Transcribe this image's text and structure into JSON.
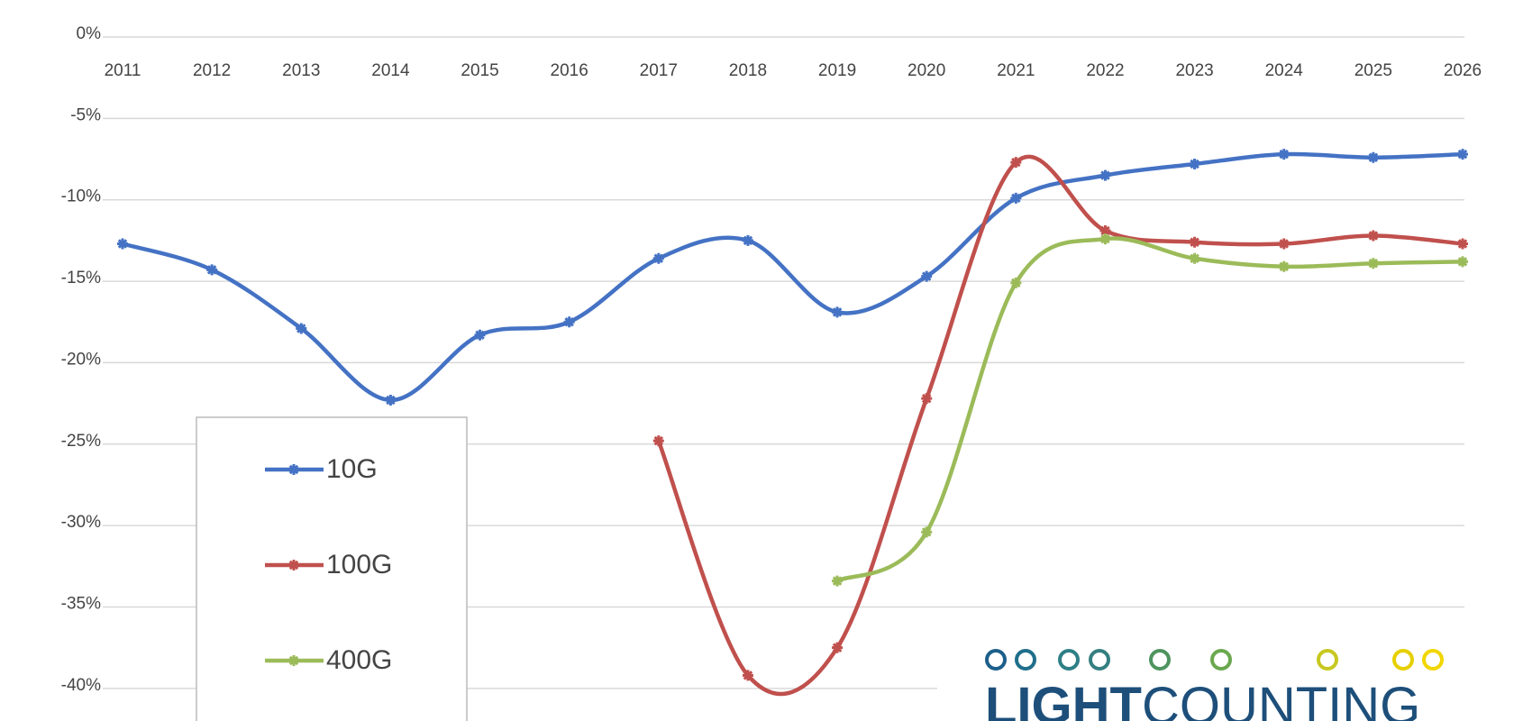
{
  "chart_data": {
    "type": "line",
    "categories": [
      "2011",
      "2012",
      "2013",
      "2014",
      "2015",
      "2016",
      "2017",
      "2018",
      "2019",
      "2020",
      "2021",
      "2022",
      "2023",
      "2024",
      "2025",
      "2026"
    ],
    "series": [
      {
        "name": "10G",
        "color": "#4472c4",
        "values": [
          -12.7,
          -14.3,
          -17.9,
          -22.3,
          -18.3,
          -17.5,
          -13.6,
          -12.5,
          -16.9,
          -14.7,
          -9.9,
          -8.5,
          -7.8,
          -7.2,
          -7.4,
          -7.2
        ]
      },
      {
        "name": "100G",
        "color": "#c0504d",
        "values": [
          null,
          null,
          null,
          null,
          null,
          null,
          -24.8,
          -39.2,
          -37.5,
          -22.2,
          -7.7,
          -11.9,
          -12.6,
          -12.7,
          -12.2,
          -12.7
        ]
      },
      {
        "name": "400G",
        "color": "#9bbb59",
        "values": [
          null,
          null,
          null,
          null,
          null,
          null,
          null,
          null,
          -33.4,
          -30.4,
          -15.1,
          -12.4,
          -13.6,
          -14.1,
          -13.9,
          -13.8
        ]
      }
    ],
    "ylim": [
      -42,
      0
    ],
    "yticks": [
      {
        "value": 0,
        "label": "0%"
      },
      {
        "value": -5,
        "label": "-5%"
      },
      {
        "value": -10,
        "label": "-10%"
      },
      {
        "value": -15,
        "label": "-15%"
      },
      {
        "value": -20,
        "label": "-20%"
      },
      {
        "value": -25,
        "label": "-25%"
      },
      {
        "value": -30,
        "label": "-30%"
      },
      {
        "value": -35,
        "label": "-35%"
      },
      {
        "value": -40,
        "label": "-40%"
      }
    ],
    "grid": true,
    "legend": "lower left"
  },
  "logo": {
    "bold": "LIGHT",
    "regular": "COUNTING"
  }
}
